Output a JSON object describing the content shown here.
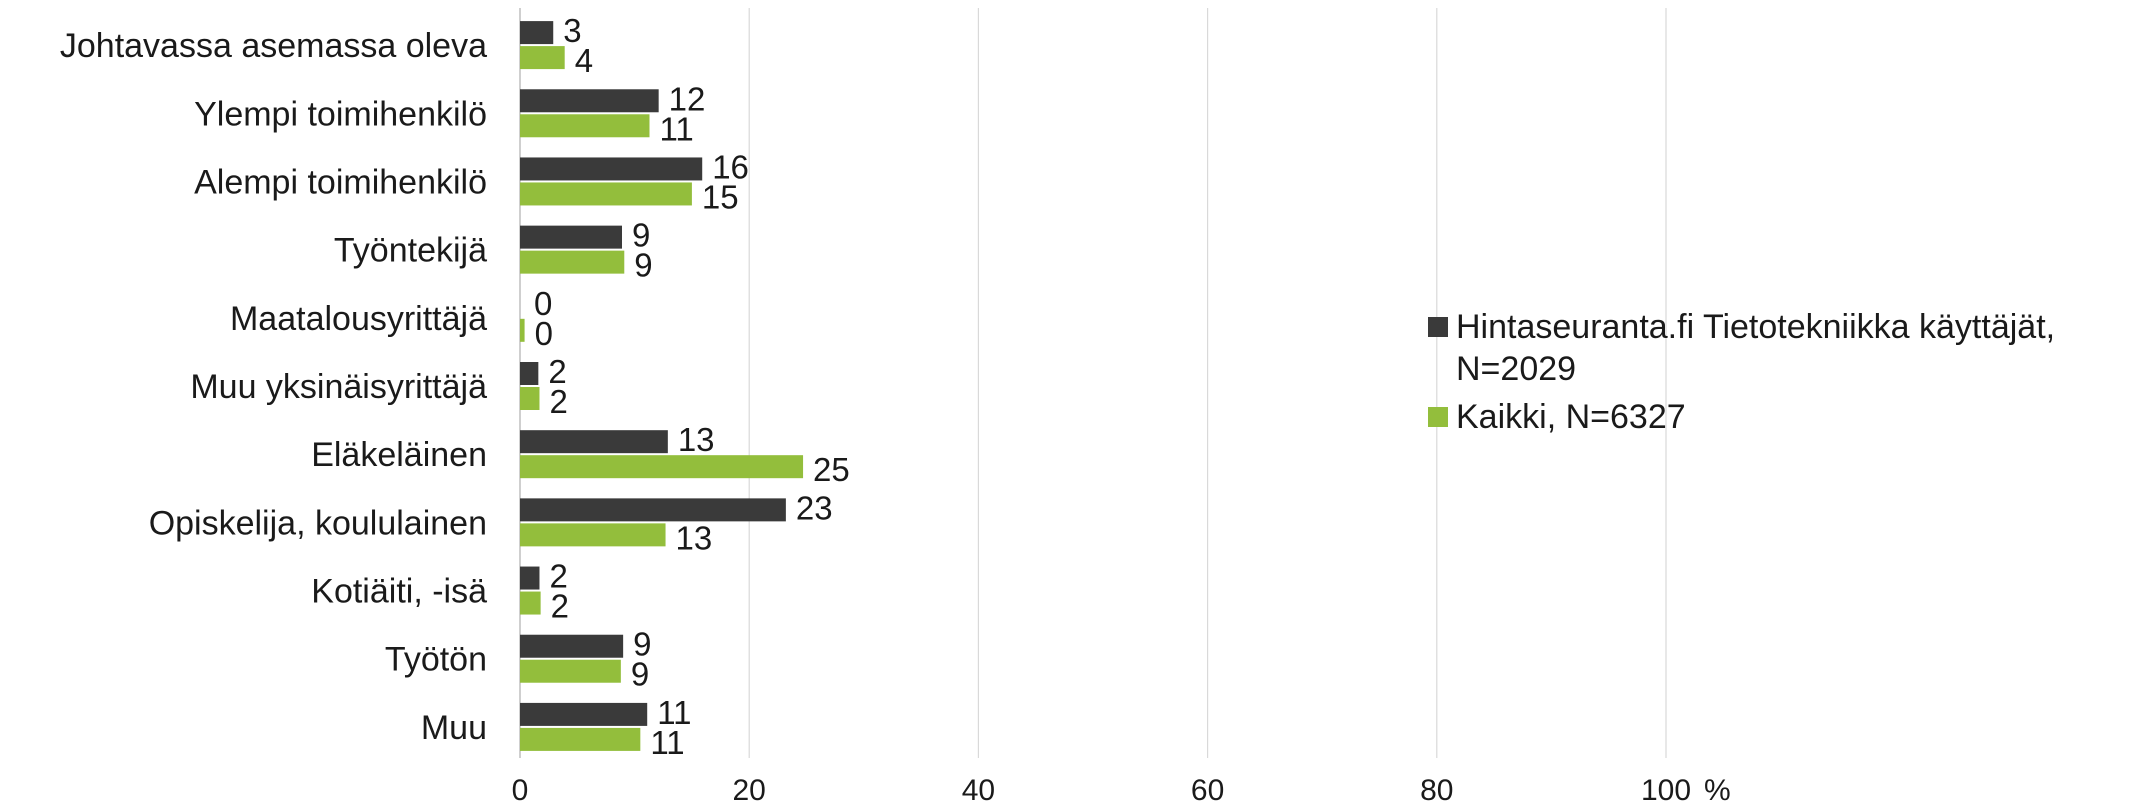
{
  "chart_data": {
    "type": "bar",
    "orientation": "horizontal",
    "categories": [
      "Johtavassa asemassa oleva",
      "Ylempi toimihenkilö",
      "Alempi toimihenkilö",
      "Työntekijä",
      "Maatalousyrittäjä",
      "Muu yksinäisyrittäjä",
      "Eläkeläinen",
      "Opiskelija, koululainen",
      "Kotiäiti, -isä",
      "Työtön",
      "Muu"
    ],
    "series": [
      {
        "name": "Hintaseuranta.fi Tietotekniikka käyttäjät, N=2029",
        "color": "#3a3a3a",
        "values": [
          3,
          12,
          16,
          9,
          0,
          2,
          13,
          23,
          2,
          9,
          11
        ],
        "plotted": [
          2.9,
          12.1,
          15.9,
          8.9,
          0,
          1.6,
          12.9,
          23.2,
          1.7,
          9,
          11.1
        ]
      },
      {
        "name": "Kaikki, N=6327",
        "color": "#93be3c",
        "values": [
          4,
          11,
          15,
          9,
          0,
          2,
          25,
          13,
          2,
          9,
          11
        ],
        "plotted": [
          3.9,
          11.3,
          15,
          9.1,
          0.4,
          1.7,
          24.7,
          12.7,
          1.8,
          8.8,
          10.5
        ]
      }
    ],
    "xaxis": {
      "min": 0,
      "max": 100,
      "ticks": [
        0,
        20,
        40,
        60,
        80,
        100
      ],
      "unit": "%"
    },
    "grid": "vertical",
    "legend": "right"
  }
}
